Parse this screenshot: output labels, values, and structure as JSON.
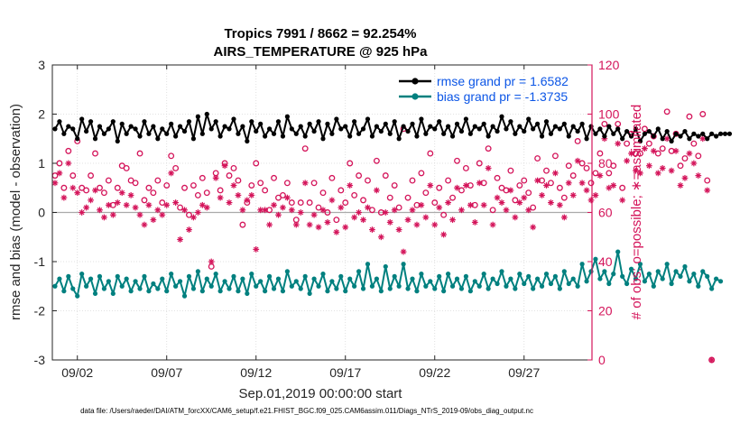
{
  "chart_data": {
    "type": "line",
    "title": "Tropics 7991 / 8662 = 92.254%",
    "subtitle": "AIRS_TEMPERATURE @ 925 hPa",
    "xlabel": "Sep.01,2019 00:00:00 start",
    "ylabel_left": "rmse and bias (model - observation)",
    "ylabel_right": "# of obs: o=possible; ∗=assimilated",
    "footer": "data file: /Users/raeder/DAI/ATM_forcXX/CAM6_setup/f.e21.FHIST_BGC.f09_025.CAM6assim.011/Diags_NTrS_2019-09/obs_diag_output.nc",
    "xlim": [
      0.6,
      30.8
    ],
    "ylim_left": [
      -3,
      3
    ],
    "ylim_right": [
      0,
      120
    ],
    "x_ticks": [
      {
        "value": 2,
        "label": "09/02"
      },
      {
        "value": 7,
        "label": "09/07"
      },
      {
        "value": 12,
        "label": "09/12"
      },
      {
        "value": 17,
        "label": "09/17"
      },
      {
        "value": 22,
        "label": "09/22"
      },
      {
        "value": 27,
        "label": "09/27"
      }
    ],
    "y_left_ticks": [
      "-3",
      "-2",
      "-1",
      "0",
      "1",
      "2",
      "3"
    ],
    "y_right_ticks": [
      "0",
      "20",
      "40",
      "60",
      "80",
      "100",
      "120"
    ],
    "zero_line": 0,
    "grid": true,
    "legend_position": "top-right",
    "x_start": 0.75,
    "x_step": 0.25,
    "series": [
      {
        "name": "rmse grand pr = 1.6582",
        "axis": "left",
        "color": "#000000",
        "marker": "filled-circle",
        "values": [
          1.7,
          1.85,
          1.6,
          1.75,
          1.7,
          1.5,
          1.9,
          1.65,
          1.85,
          1.5,
          1.75,
          1.6,
          1.7,
          1.85,
          1.45,
          1.8,
          1.6,
          1.75,
          1.7,
          1.55,
          1.85,
          1.6,
          1.75,
          1.5,
          1.7,
          1.6,
          1.8,
          1.55,
          1.75,
          1.65,
          1.85,
          1.5,
          1.95,
          1.6,
          2.0,
          1.7,
          1.85,
          1.55,
          1.75,
          1.7,
          1.9,
          1.6,
          1.75,
          1.45,
          1.85,
          1.65,
          1.8,
          1.55,
          1.7,
          1.6,
          1.85,
          1.55,
          1.95,
          1.7,
          1.6,
          1.75,
          1.55,
          1.8,
          1.65,
          1.85,
          1.5,
          1.8,
          1.6,
          1.9,
          1.7,
          1.75,
          1.55,
          1.85,
          1.6,
          1.7,
          1.9,
          1.55,
          1.75,
          1.65,
          1.8,
          1.6,
          1.85,
          1.5,
          1.75,
          1.65,
          1.8,
          1.55,
          1.9,
          1.6,
          1.75,
          1.7,
          1.85,
          1.6,
          1.75,
          1.55,
          1.8,
          1.65,
          1.9,
          1.6,
          1.75,
          1.7,
          1.8,
          1.55,
          1.75,
          1.65,
          1.95,
          1.7,
          1.85,
          1.6,
          1.75,
          1.65,
          1.9,
          1.7,
          1.8,
          1.55,
          1.85,
          1.6,
          1.75,
          1.7,
          1.8,
          1.55,
          1.75,
          1.65,
          1.8,
          1.5,
          1.75,
          1.6,
          1.7,
          1.55,
          1.75,
          1.6,
          1.7,
          1.5,
          1.65,
          1.55,
          1.7,
          1.45,
          1.6,
          1.65,
          1.55,
          1.7,
          1.5,
          1.65,
          1.45,
          1.6,
          1.55,
          1.65,
          1.5,
          1.6,
          1.55,
          1.6,
          1.5,
          1.6,
          1.55,
          1.6,
          1.6,
          1.6
        ]
      },
      {
        "name": "bias grand pr = -1.3735",
        "axis": "left",
        "color": "#00807f",
        "marker": "filled-circle",
        "values": [
          -1.5,
          -1.35,
          -1.6,
          -1.3,
          -1.55,
          -1.7,
          -1.25,
          -1.5,
          -1.35,
          -1.65,
          -1.3,
          -1.55,
          -1.4,
          -1.65,
          -1.3,
          -1.5,
          -1.35,
          -1.6,
          -1.4,
          -1.55,
          -1.3,
          -1.6,
          -1.45,
          -1.55,
          -1.35,
          -1.6,
          -1.25,
          -1.5,
          -1.4,
          -1.7,
          -1.3,
          -1.55,
          -1.2,
          -1.6,
          -1.35,
          -1.5,
          -1.25,
          -1.6,
          -1.4,
          -1.55,
          -1.3,
          -1.6,
          -1.35,
          -1.65,
          -1.25,
          -1.5,
          -1.4,
          -1.6,
          -1.3,
          -1.55,
          -1.35,
          -1.6,
          -1.2,
          -1.5,
          -1.4,
          -1.55,
          -1.3,
          -1.65,
          -1.35,
          -1.5,
          -1.25,
          -1.6,
          -1.4,
          -1.55,
          -1.3,
          -1.6,
          -1.35,
          -1.5,
          -1.2,
          -1.55,
          -1.05,
          -1.5,
          -1.35,
          -1.6,
          -1.1,
          -1.55,
          -1.3,
          -1.5,
          -1.05,
          -1.55,
          -1.35,
          -1.6,
          -1.25,
          -1.5,
          -1.4,
          -1.55,
          -1.3,
          -1.6,
          -1.25,
          -1.5,
          -1.35,
          -1.55,
          -1.3,
          -1.6,
          -1.4,
          -1.5,
          -1.25,
          -1.55,
          -1.35,
          -1.45,
          -1.2,
          -1.5,
          -1.35,
          -1.55,
          -1.25,
          -1.45,
          -1.3,
          -1.55,
          -1.35,
          -1.5,
          -1.25,
          -1.45,
          -1.3,
          -1.55,
          -1.2,
          -1.45,
          -1.35,
          -1.5,
          -1.05,
          -1.4,
          -1.2,
          -0.95,
          -1.35,
          -1.2,
          -1.45,
          -1.25,
          -0.8,
          -1.3,
          -1.45,
          -1.15,
          -1.35,
          -1.05,
          -1.4,
          -1.25,
          -1.5,
          -1.2,
          -1.35,
          -1.05,
          -1.45,
          -1.2,
          -1.3,
          -1.1,
          -1.4,
          -1.25,
          -1.5,
          -1.2,
          -1.3,
          -1.55,
          -1.35,
          -1.4
        ]
      },
      {
        "name": "possible obs",
        "axis": "right",
        "color": "#d4145a",
        "marker": "open-circle",
        "values": [
          75,
          80,
          70,
          85,
          75,
          89,
          70,
          69,
          75,
          84,
          70,
          68,
          73,
          63,
          70,
          79,
          78,
          73,
          72,
          84,
          65,
          70,
          68,
          73,
          64,
          71,
          83,
          78,
          62,
          70,
          59,
          71,
          67,
          74,
          68,
          38,
          76,
          69,
          80,
          75,
          78,
          73,
          55,
          64,
          71,
          80,
          72,
          69,
          61,
          74,
          66,
          67,
          72,
          64,
          57,
          64,
          86,
          64,
          72,
          62,
          68,
          60,
          74,
          57,
          69,
          64,
          80,
          67,
          75,
          65,
          73,
          61,
          81,
          60,
          75,
          66,
          71,
          62,
          94,
          66,
          73,
          63,
          76,
          68,
          84,
          64,
          70,
          59,
          73,
          66,
          81,
          69,
          78,
          71,
          63,
          80,
          72,
          86,
          61,
          74,
          70,
          69,
          77,
          65,
          71,
          73,
          68,
          62,
          82,
          73,
          77,
          72,
          83,
          70,
          66,
          79,
          75,
          89,
          80,
          78,
          72,
          76,
          84,
          96,
          76,
          79,
          96,
          70,
          88,
          92,
          84,
          84,
          94,
          88,
          91,
          84,
          86,
          101,
          85,
          92,
          79,
          82,
          99,
          88,
          83,
          100,
          73,
          0
        ]
      },
      {
        "name": "assimilated obs",
        "axis": "right",
        "color": "#d4145a",
        "marker": "asterisk",
        "values": [
          72,
          76,
          66,
          80,
          70,
          68,
          60,
          62,
          65,
          69,
          61,
          58,
          63,
          59,
          64,
          68,
          63,
          67,
          62,
          59,
          55,
          63,
          57,
          61,
          59,
          63,
          76,
          64,
          49,
          61,
          53,
          58,
          60,
          63,
          62,
          40,
          74,
          66,
          79,
          64,
          71,
          67,
          61,
          65,
          67,
          45,
          61,
          61,
          55,
          63,
          59,
          62,
          66,
          61,
          55,
          60,
          72,
          55,
          59,
          54,
          61,
          56,
          65,
          52,
          62,
          54,
          71,
          58,
          60,
          57,
          62,
          53,
          69,
          50,
          60,
          56,
          61,
          53,
          44,
          57,
          61,
          55,
          63,
          58,
          71,
          55,
          62,
          51,
          64,
          57,
          70,
          61,
          71,
          63,
          56,
          72,
          63,
          78,
          55,
          66,
          64,
          61,
          69,
          58,
          64,
          66,
          61,
          54,
          73,
          67,
          71,
          64,
          76,
          63,
          58,
          72,
          67,
          81,
          72,
          69,
          65,
          67,
          75,
          90,
          70,
          71,
          88,
          65,
          81,
          84,
          77,
          76,
          86,
          79,
          85,
          76,
          78,
          90,
          77,
          85,
          71,
          74,
          84,
          80,
          75,
          90,
          69,
          0
        ]
      }
    ]
  }
}
